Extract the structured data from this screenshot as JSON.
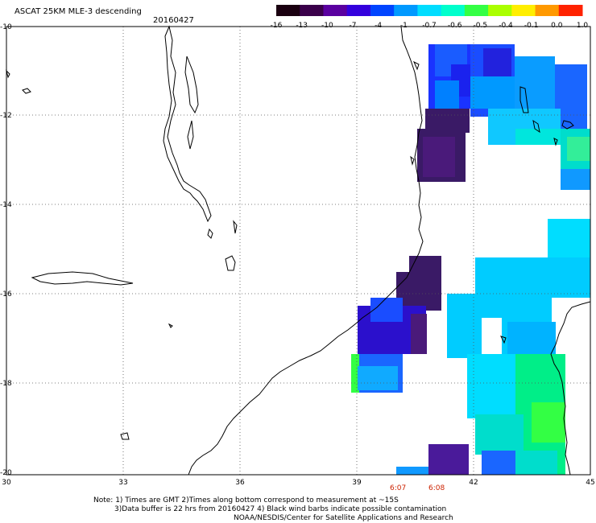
{
  "header": {
    "title": "ASCAT 25KM MLE-3 descending",
    "date": "20160427"
  },
  "colorbar": {
    "ticks": [
      "-16",
      "-13",
      "-10",
      "-7",
      "-4",
      "-1",
      "-0.7",
      "-0.6",
      "-0.5",
      "-0.4",
      "-0.1",
      "0.0",
      "1.0"
    ],
    "colors": [
      "#1a0010",
      "#3a004a",
      "#5a00a0",
      "#3300dd",
      "#0044ff",
      "#0099ff",
      "#00ddff",
      "#00ffcc",
      "#33ff44",
      "#aaff00",
      "#ffee00",
      "#ff9900",
      "#ff2200"
    ]
  },
  "axes": {
    "x_ticks": [
      "30",
      "33",
      "36",
      "39",
      "42",
      "45"
    ],
    "y_ticks": [
      "-10",
      "-12",
      "-14",
      "-16",
      "-18",
      "-20"
    ]
  },
  "times": [
    "6:07",
    "6:08"
  ],
  "notes": {
    "line1": "Note: 1) Times are GMT 2)Times along bottom correspond to measurement at ~15S",
    "line2": "3)Data buffer is 22 hrs from 20160427 4) Black wind barbs indicate possible contamination",
    "line3": "NOAA/NESDIS/Center for Satellite Applications and Research"
  }
}
